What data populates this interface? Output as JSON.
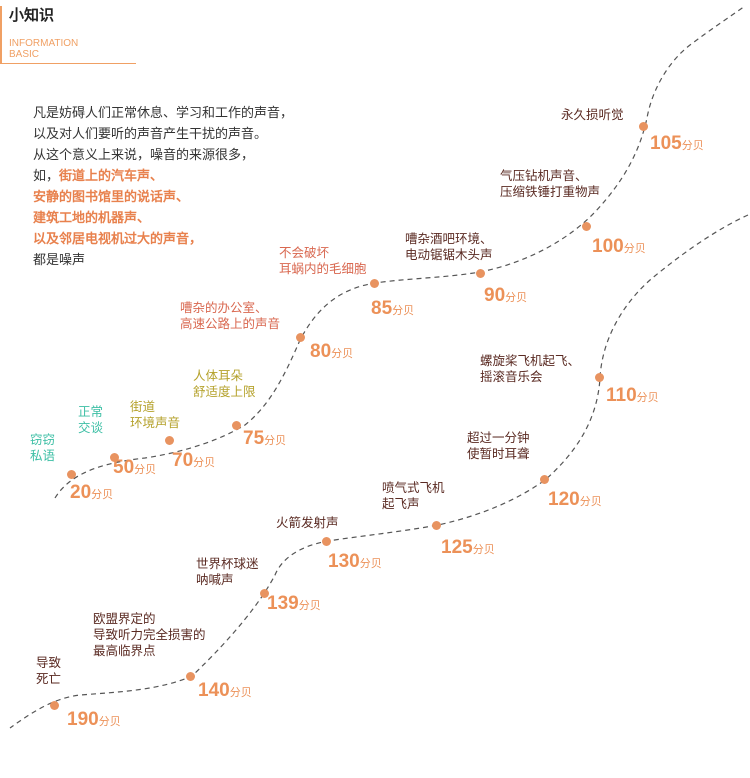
{
  "header": {
    "title": "小知识",
    "subtitle_line1": "INFORMATION",
    "subtitle_line2": "BASIC"
  },
  "intro": {
    "l1": "凡是妨碍人们正常休息、学习和工作的声音，",
    "l2": "以及对人们要听的声音产生干扰的声音。",
    "l3": "从这个意义上来说，噪音的来源很多，",
    "l4a": "如，",
    "l4b": "街道上的汽车声、",
    "l5": "安静的图书馆里的说话声、",
    "l6": "建筑工地的机器声、",
    "l7": "以及邻居电视机过大的声音，",
    "l8": "都是噪声"
  },
  "unit": "分贝",
  "points": [
    {
      "db": "20",
      "label1": "窃窃",
      "label2": "私语"
    },
    {
      "db": "50",
      "label1": "正常",
      "label2": "交谈"
    },
    {
      "db": "70",
      "label1": "街道",
      "label2": "环境声音"
    },
    {
      "db": "75",
      "label1": "人体耳朵",
      "label2": "舒适度上限"
    },
    {
      "db": "80",
      "label1": "嘈杂的办公室、",
      "label2": "高速公路上的声音"
    },
    {
      "db": "85",
      "label1": "不会破坏",
      "label2": "耳蜗内的毛细胞"
    },
    {
      "db": "90",
      "label1": "嘈杂酒吧环境、",
      "label2": "电动锯锯木头声"
    },
    {
      "db": "100",
      "label1": "气压钻机声音、",
      "label2": "压缩铁锤打重物声"
    },
    {
      "db": "105",
      "label1": "永久损听觉"
    },
    {
      "db": "110",
      "label1": "螺旋桨飞机起飞、",
      "label2": "摇滚音乐会"
    },
    {
      "db": "120",
      "label1": "超过一分钟",
      "label2": "使暂时耳聋"
    },
    {
      "db": "125",
      "label1": "喷气式飞机",
      "label2": "起飞声"
    },
    {
      "db": "130",
      "label1": "火箭发射声"
    },
    {
      "db": "139",
      "label1": "世界杯球迷",
      "label2": "呐喊声"
    },
    {
      "db": "140",
      "label1": "欧盟界定的",
      "label2": "导致听力完全损害的",
      "label3": "最高临界点"
    },
    {
      "db": "190",
      "label1": "导致",
      "label2": "死亡"
    }
  ],
  "colors": {
    "accent": "#ec9158",
    "curve": "#555555",
    "teal": "#3dbfa5",
    "olive": "#b5a22c",
    "red": "#d96850",
    "dark": "#5a2a22"
  }
}
